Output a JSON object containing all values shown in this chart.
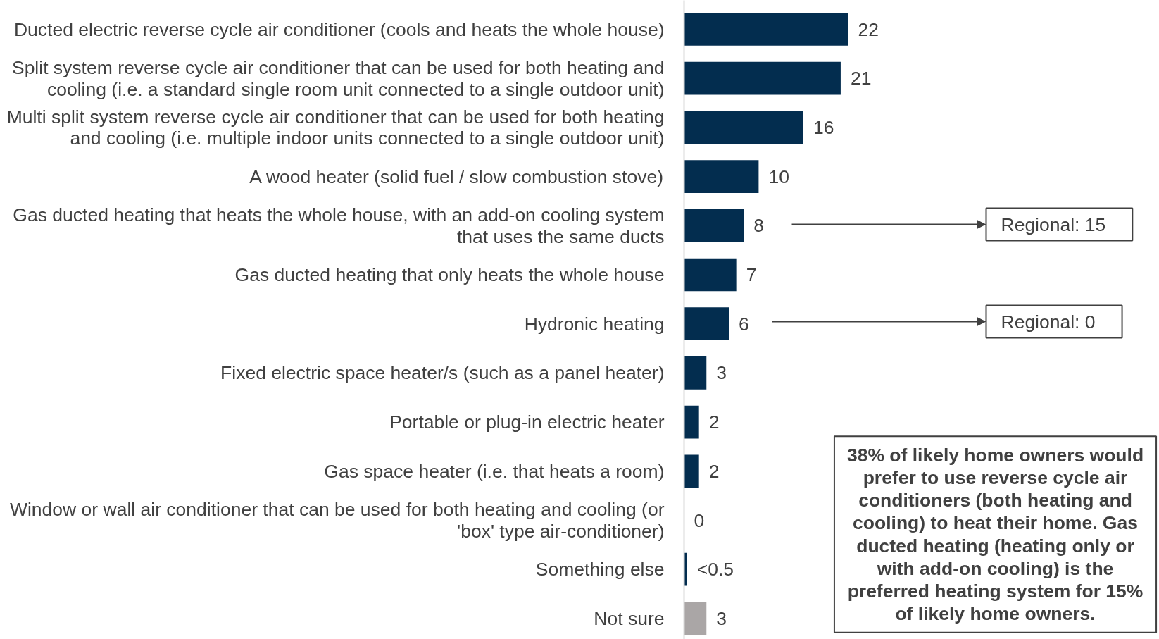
{
  "chart_data": {
    "type": "bar",
    "orientation": "horizontal",
    "categories": [
      "Ducted electric reverse cycle air conditioner (cools and heats the whole house)",
      "Split system reverse cycle air conditioner that can be used for both heating and cooling (i.e. a standard single room unit connected to a single outdoor unit)",
      "Multi split system reverse cycle air conditioner that can be used for both heating and cooling (i.e. multiple indoor units connected to a single outdoor unit)",
      "A wood heater (solid fuel / slow combustion stove)",
      "Gas ducted heating that heats the whole house, with an add-on cooling system that uses the same ducts",
      "Gas ducted heating that only heats the whole house",
      "Hydronic heating",
      "Fixed electric space heater/s (such as a panel heater)",
      "Portable or plug-in electric heater",
      "Gas space heater (i.e. that heats a room)",
      "Window or wall air conditioner that can be used for both heating and cooling (or 'box' type air-conditioner)",
      "Something else",
      "Not sure"
    ],
    "values": [
      22,
      21,
      16,
      10,
      8,
      7,
      6,
      3,
      2,
      2,
      0,
      0.4,
      3
    ],
    "colors": [
      "#032d4f",
      "#032d4f",
      "#032d4f",
      "#032d4f",
      "#032d4f",
      "#032d4f",
      "#032d4f",
      "#032d4f",
      "#032d4f",
      "#032d4f",
      "#032d4f",
      "#032d4f",
      "#aaa6a6"
    ],
    "value_labels": [
      "22",
      "21",
      "16",
      "10",
      "8",
      "7",
      "6",
      "3",
      "2",
      "2",
      "0",
      "<0.5",
      "3"
    ],
    "annotations": [
      "Regional: 15",
      "Regional: 0",
      "38% of likely home owners would prefer to use reverse cycle air conditioners (both heating and cooling) to heat their home. Gas ducted heating (heating only or with add-on cooling) is the preferred heating system for 15% of likely home owners."
    ],
    "grid": false
  }
}
